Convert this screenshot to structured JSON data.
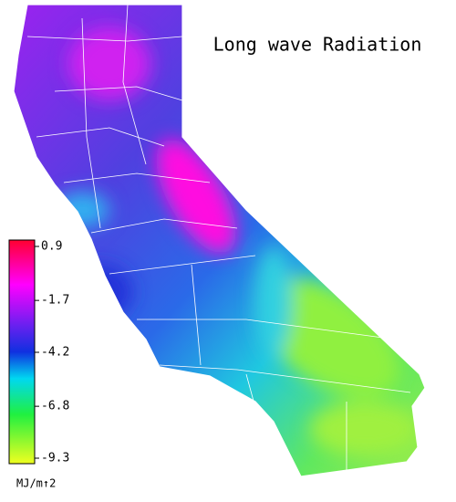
{
  "title": "Long wave Radiation",
  "legend": {
    "ticks": [
      0.9,
      -1.7,
      -4.2,
      -6.8,
      -9.3
    ],
    "unit": "MJ/m↑2"
  }
}
